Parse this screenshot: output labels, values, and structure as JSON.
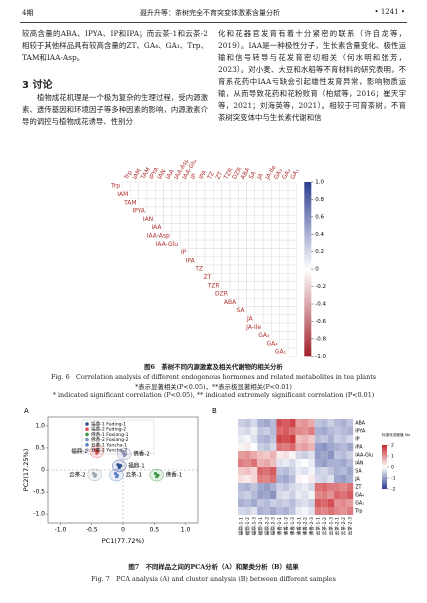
{
  "header": {
    "left": "4期",
    "center": "聂升升等：茶树完全不育突变体激素含量分析",
    "right": "• 1241 •"
  },
  "body": {
    "left_para1": "较高含量的ABA、IPYA、IP和IPA；而云茶-1和云茶-2相较于其他样品具有较高含量的ZT、GA₄、GA₁、Trp、TAM和IAA-Asp。",
    "heading": "3 讨论",
    "left_para2": "植物成花机理是一个极为复杂的生理过程，受内源激素、遗传基因和环境因子等多种因素的影响，内源激素介导的调控与植物成花诱导、性别分",
    "right_para": "化和花器官发育有着十分紧密的联系（许自龙等，2019）。IAA是一种极性分子，生长素含量变化、极性运输和信号转导与花发育密切相关（何水明和张芳，2023）。对小麦、大豆和水稻等不育材料的研究表明，不育系花药中IAA亏缺会引起雄性发育异常，影响物质运输，从而导致花药和花粉败育（柏斌等，2016；崔天宇等，2021；刘海英等，2021）。相较于可育茶树，不育茶树突变体中与生长素代谢和信"
  },
  "figure6": {
    "labels": [
      "Trp",
      "IAM",
      "TAM",
      "IPYA",
      "IAN",
      "IAA",
      "IAA-Asp",
      "IAA-Glu",
      "IP",
      "IPA",
      "TZ",
      "ZT",
      "TZR",
      "DZR",
      "ABA",
      "SA",
      "JA",
      "JA-Ile",
      "GA₃",
      "GA₄",
      "GA₁"
    ],
    "colorbar_ticks": [
      {
        "value": 1,
        "label": "1.0"
      },
      0.8,
      0.6,
      0.4,
      0.2,
      0,
      -0.2,
      -0.4,
      -0.6,
      -0.8,
      {
        "value": -1,
        "label": "-1.0"
      }
    ],
    "caption_cn": "图6　茶树不同内源激素及相关代谢物的相关分析",
    "caption_en": "Fig. 6　Correlation analysis of different endogenous hormones and related metabolites in tea plants",
    "note_cn": "*表示显著相关(P<0.05)，**表示极显著相关(P<0.01)",
    "note_en": "* indicated significant correlation (P<0.05), ** indicated extremely significant correlation (P<0.01)"
  },
  "chart_data": [
    {
      "type": "scatter",
      "panel": "A",
      "xlabel": "PC1(77.72%)",
      "ylabel": "PC2(17.25%)",
      "xlim": [
        -1.2,
        1.2
      ],
      "ylim": [
        -1.2,
        1.2
      ],
      "xticks": [
        {
          "value": -1,
          "label": "-1.0"
        },
        -0.5,
        0,
        0.5,
        {
          "value": 1,
          "label": "1.0"
        }
      ],
      "yticks": [
        {
          "value": -1,
          "label": "-1.0"
        },
        -0.5,
        0,
        0.5,
        {
          "value": 1,
          "label": "1.0"
        }
      ],
      "series": [
        {
          "name": "福鼎-1 Fuding-1",
          "label": "福鼎-1",
          "color": "#2e4d8f",
          "x": [
            -0.08,
            -0.04,
            -0.06
          ],
          "y": [
            0.12,
            0.1,
            0.06
          ]
        },
        {
          "name": "福鼎-2 Fuding-2",
          "label": "福鼎-2",
          "color": "#d9534f",
          "x": [
            -0.44,
            -0.4,
            -0.42
          ],
          "y": [
            0.45,
            0.42,
            0.38
          ]
        },
        {
          "name": "佛香-1 Foxiang-1",
          "label": "佛香-1",
          "color": "#3c9a4a",
          "x": [
            0.52,
            0.56,
            0.54
          ],
          "y": [
            -0.08,
            -0.12,
            -0.15
          ]
        },
        {
          "name": "佛香-2 Foxiang-2",
          "label": "佛香-2",
          "color": "#8a8fb8",
          "x": [
            0.0,
            0.04,
            0.02
          ],
          "y": [
            0.4,
            0.36,
            0.33
          ]
        },
        {
          "name": "云茶-1 Yuncha-1",
          "label": "云茶-1",
          "color": "#5b7fc4",
          "x": [
            -0.12,
            -0.09,
            -0.1
          ],
          "y": [
            -0.08,
            -0.12,
            -0.15
          ]
        },
        {
          "name": "云茶-2 Yuncha-2",
          "label": "云茶-2",
          "color": "#9aa5b3",
          "x": [
            -0.47,
            -0.44,
            -0.45
          ],
          "y": [
            -0.08,
            -0.11,
            -0.14
          ]
        }
      ]
    },
    {
      "type": "heatmap",
      "panel": "B",
      "legend_title": "标准化浓度值 Standardized concentration value",
      "clim": [
        -2,
        2
      ],
      "cticks": [
        2,
        1,
        0,
        -1,
        -2
      ],
      "columns": [
        "福鼎-1-1",
        "福鼎-1-2",
        "福鼎-1-3",
        "福鼎-2-1",
        "福鼎-2-2",
        "福鼎-2-3",
        "佛香-1-1",
        "佛香-1-2",
        "佛香-1-3",
        "佛香-2-1",
        "佛香-2-2",
        "佛香-2-3",
        "云茶-1-1",
        "云茶-1-2",
        "云茶-1-3",
        "云茶-2-1",
        "云茶-2-2",
        "云茶-2-3"
      ],
      "rows": [
        "ABA",
        "IPYA",
        "IP",
        "IPA",
        "IAA-Glu",
        "IAN",
        "SA",
        "JA",
        "ZT",
        "GA₄",
        "GA₁",
        "Trp"
      ],
      "values": [
        [
          -0.5,
          -0.6,
          -0.4,
          -0.8,
          -0.9,
          -0.7,
          1.6,
          1.5,
          1.7,
          0.9,
          1.0,
          0.8,
          -0.6,
          -0.7,
          -0.5,
          -0.7,
          -0.8,
          -0.6
        ],
        [
          -0.3,
          -0.4,
          -0.2,
          -0.6,
          -0.5,
          -0.7,
          1.4,
          1.5,
          1.3,
          1.1,
          1.0,
          1.2,
          -0.8,
          -0.9,
          -0.7,
          -0.6,
          -0.7,
          -0.8
        ],
        [
          -0.2,
          -0.1,
          -0.3,
          -0.7,
          -0.8,
          -0.6,
          1.7,
          1.6,
          1.8,
          0.6,
          0.7,
          0.5,
          -0.7,
          -0.6,
          -0.8,
          -0.5,
          -0.6,
          -0.4
        ],
        [
          0.1,
          0.2,
          0.0,
          -0.5,
          -0.6,
          -0.4,
          1.3,
          1.2,
          1.4,
          0.8,
          0.9,
          0.7,
          -1.0,
          -1.1,
          -0.9,
          -0.8,
          -0.7,
          -0.9
        ],
        [
          0.9,
          1.0,
          0.8,
          0.6,
          0.5,
          0.7,
          0.2,
          0.3,
          0.1,
          -0.4,
          -0.5,
          -0.3,
          -1.0,
          -0.9,
          -1.1,
          -0.6,
          -0.7,
          -0.5
        ],
        [
          1.2,
          1.1,
          1.3,
          0.7,
          0.8,
          0.6,
          -0.3,
          -0.2,
          -0.4,
          -0.1,
          0.0,
          -0.2,
          -0.9,
          -1.0,
          -0.8,
          -0.8,
          -0.9,
          -0.7
        ],
        [
          0.5,
          0.6,
          0.4,
          1.4,
          1.3,
          1.5,
          -0.6,
          -0.7,
          -0.5,
          -0.2,
          -0.3,
          -0.1,
          -0.5,
          -0.4,
          -0.6,
          -0.8,
          -0.7,
          -0.9
        ],
        [
          0.3,
          0.2,
          0.4,
          1.2,
          1.1,
          1.3,
          -0.8,
          -0.9,
          -0.7,
          0.1,
          0.0,
          0.2,
          -0.4,
          -0.5,
          -0.3,
          -0.9,
          -1.0,
          -0.8
        ],
        [
          -0.7,
          -0.8,
          -0.6,
          -0.9,
          -1.0,
          -0.8,
          -0.5,
          -0.6,
          -0.4,
          -0.3,
          -0.2,
          -0.4,
          1.3,
          1.4,
          1.2,
          1.2,
          1.1,
          1.3
        ],
        [
          -0.6,
          -0.5,
          -0.7,
          -1.0,
          -0.9,
          -1.1,
          -0.4,
          -0.3,
          -0.5,
          -0.2,
          -0.3,
          -0.1,
          1.1,
          1.2,
          1.0,
          1.4,
          1.3,
          1.5
        ],
        [
          -0.8,
          -0.7,
          -0.9,
          -0.6,
          -0.7,
          -0.5,
          -0.6,
          -0.5,
          -0.7,
          -0.4,
          -0.3,
          -0.5,
          1.5,
          1.4,
          1.6,
          1.0,
          1.1,
          0.9
        ],
        [
          -0.4,
          -0.5,
          -0.3,
          -0.8,
          -0.7,
          -0.9,
          -0.7,
          -0.8,
          -0.6,
          -0.2,
          -0.1,
          -0.3,
          1.2,
          1.1,
          1.3,
          1.1,
          1.0,
          1.2
        ]
      ]
    }
  ],
  "figure7": {
    "caption_cn": "图7　不同样品之间的PCA分析（A）和聚类分析（B）结果",
    "caption_en": "Fig. 7　PCA analysis (A) and cluster analysis (B) between different samples"
  }
}
